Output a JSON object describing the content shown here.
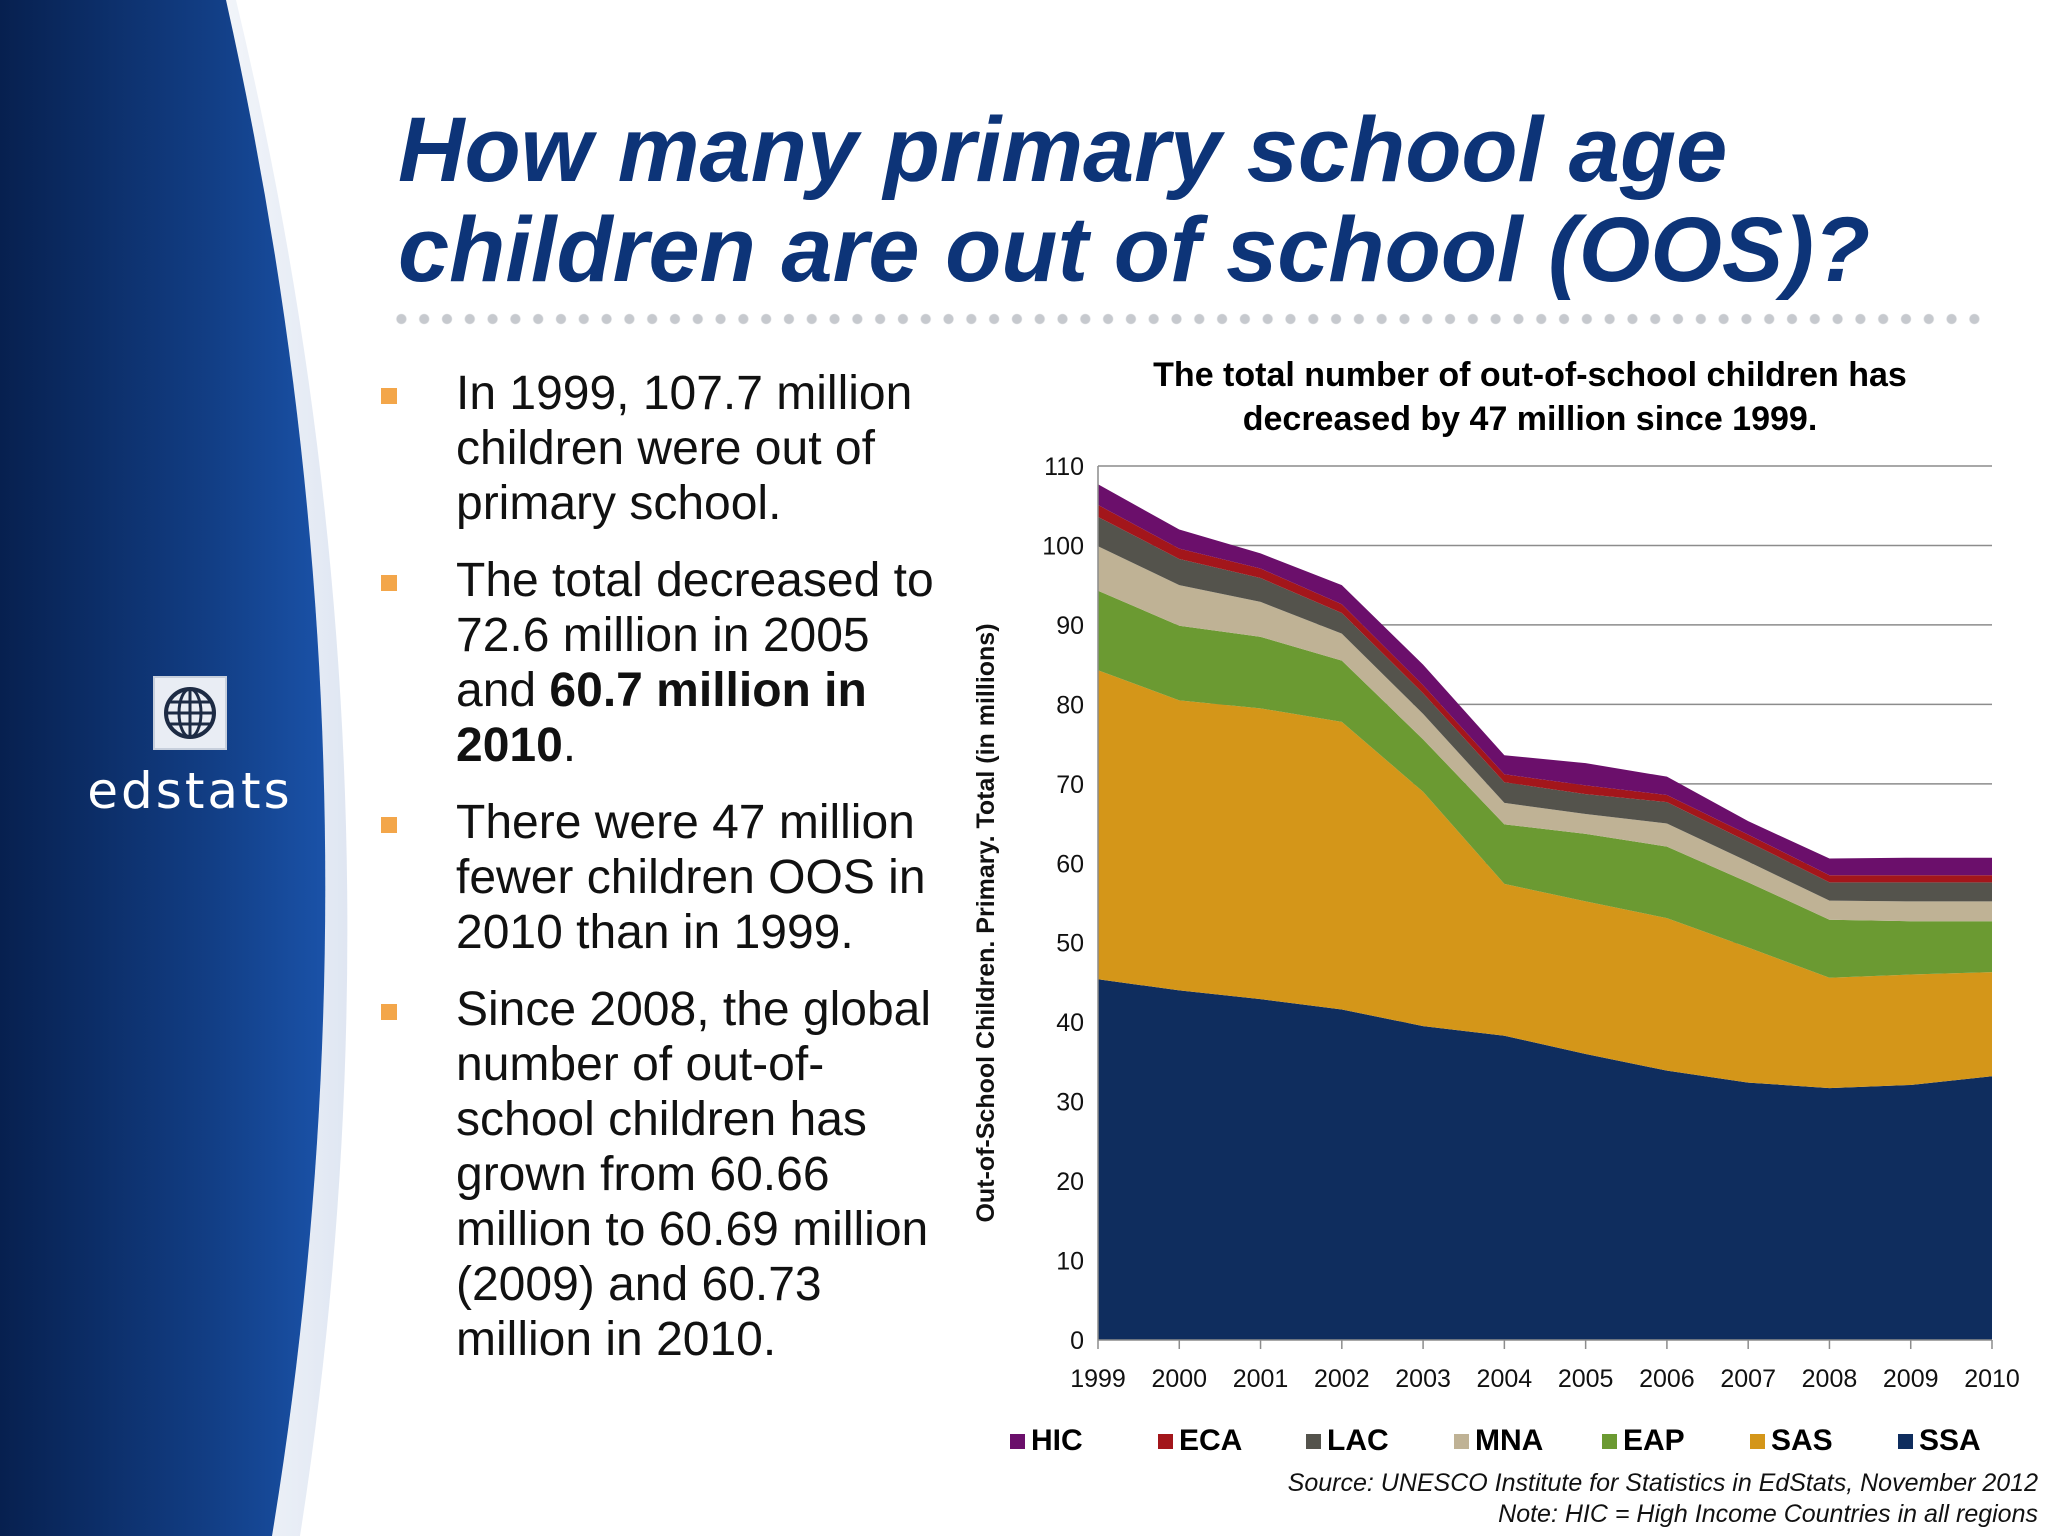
{
  "slide": {
    "title_line1": "How many primary school age",
    "title_line2": "children are out of school (OOS)?",
    "logo_text": "edstats",
    "bullets": [
      {
        "text": "In 1999, 107.7 million children were out of primary school."
      },
      {
        "text_plain": "The total decreased to 72.6 million in 2005 and ",
        "text_bold": "60.7 million in 2010",
        "text_tail": "."
      },
      {
        "text": "There were 47 million fewer children OOS in 2010 than in 1999."
      },
      {
        "text": "Since 2008, the global number of out-of-school children has grown from 60.66 million to 60.69 million (2009) and 60.73 million in 2010."
      }
    ],
    "source_line1": "Source: UNESCO Institute for Statistics in EdStats, November 2012",
    "source_line2": "Note: HIC = High Income Countries in all regions"
  },
  "colors": {
    "title": "#0d3478",
    "bullet": "#f3a64a",
    "panel_dark": "#07204f",
    "panel_mid": "#1a52a8"
  },
  "chart_data": {
    "type": "area",
    "stacked": true,
    "title": "The total number of out-of-school children has decreased by 47 million since 1999.",
    "title_line1": "The total number of out-of-school children has",
    "title_line2": "decreased by 47 million since 1999.",
    "ylabel": "Out-of-School Children. Primary. Total (in millions)",
    "xlabel": "",
    "x": [
      "1999",
      "2000",
      "2001",
      "2002",
      "2003",
      "2004",
      "2005",
      "2006",
      "2007",
      "2008",
      "2009",
      "2010"
    ],
    "ylim": [
      0,
      110
    ],
    "yticks": [
      0,
      10,
      20,
      30,
      40,
      50,
      60,
      70,
      80,
      90,
      100,
      110
    ],
    "grid": true,
    "legend_position": "bottom",
    "series": [
      {
        "name": "SSA",
        "color": "#0f2d5e",
        "values": [
          45.4,
          44.0,
          42.9,
          41.6,
          39.5,
          38.3,
          36.0,
          33.9,
          32.4,
          31.7,
          32.1,
          33.2
        ]
      },
      {
        "name": "SAS",
        "color": "#d49619",
        "values": [
          38.9,
          36.5,
          36.6,
          36.2,
          29.5,
          19.1,
          19.2,
          19.2,
          17.0,
          13.9,
          13.9,
          13.1
        ]
      },
      {
        "name": "EAP",
        "color": "#6b9a32",
        "values": [
          10.0,
          9.4,
          9.0,
          7.7,
          6.6,
          7.5,
          8.5,
          9.0,
          8.2,
          7.3,
          6.7,
          6.4
        ]
      },
      {
        "name": "MNA",
        "color": "#bfb295",
        "values": [
          5.6,
          5.1,
          4.4,
          3.4,
          3.2,
          2.7,
          2.5,
          2.9,
          2.6,
          2.4,
          2.5,
          2.5
        ]
      },
      {
        "name": "LAC",
        "color": "#54534c",
        "values": [
          3.7,
          3.3,
          3.0,
          2.6,
          2.6,
          2.6,
          2.5,
          2.7,
          2.5,
          2.3,
          2.4,
          2.4
        ]
      },
      {
        "name": "ECA",
        "color": "#a3161b",
        "values": [
          1.5,
          1.3,
          1.2,
          1.1,
          1.0,
          1.0,
          1.1,
          0.9,
          0.9,
          0.9,
          0.9,
          0.9
        ]
      },
      {
        "name": "HIC",
        "color": "#6b0f6b",
        "values": [
          2.6,
          2.4,
          1.9,
          2.4,
          2.6,
          2.4,
          2.8,
          2.3,
          1.7,
          2.1,
          2.2,
          2.2
        ]
      }
    ],
    "legend_order": [
      "HIC",
      "ECA",
      "LAC",
      "MNA",
      "EAP",
      "SAS",
      "SSA"
    ]
  }
}
